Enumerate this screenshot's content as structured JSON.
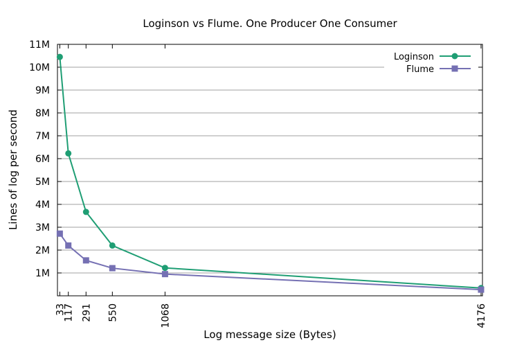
{
  "chart_data": {
    "type": "line",
    "title": "Loginson vs Flume. One Producer  One Consumer",
    "xlabel": "Log message size (Bytes)",
    "ylabel": "Lines of log per second",
    "x": [
      33,
      117,
      291,
      550,
      1068,
      4176
    ],
    "x_tick_labels": [
      "33",
      "117",
      "291",
      "550",
      "1068",
      "4176"
    ],
    "y_tick_labels": [
      "1M",
      "2M",
      "3M",
      "4M",
      "5M",
      "6M",
      "7M",
      "8M",
      "9M",
      "10M",
      "11M"
    ],
    "y_ticks": [
      1000000,
      2000000,
      3000000,
      4000000,
      5000000,
      6000000,
      7000000,
      8000000,
      9000000,
      10000000,
      11000000
    ],
    "ylim": [
      0,
      11000000
    ],
    "xlim": [
      10,
      4190
    ],
    "grid": true,
    "legend_position": "top-right",
    "series": [
      {
        "name": "Loginson",
        "color": "#1f9e74",
        "marker": "circle",
        "values": [
          10450000,
          6230000,
          3670000,
          2200000,
          1220000,
          340000
        ]
      },
      {
        "name": "Flume",
        "color": "#7570b3",
        "marker": "square",
        "values": [
          2720000,
          2200000,
          1550000,
          1210000,
          950000,
          270000
        ]
      }
    ]
  }
}
